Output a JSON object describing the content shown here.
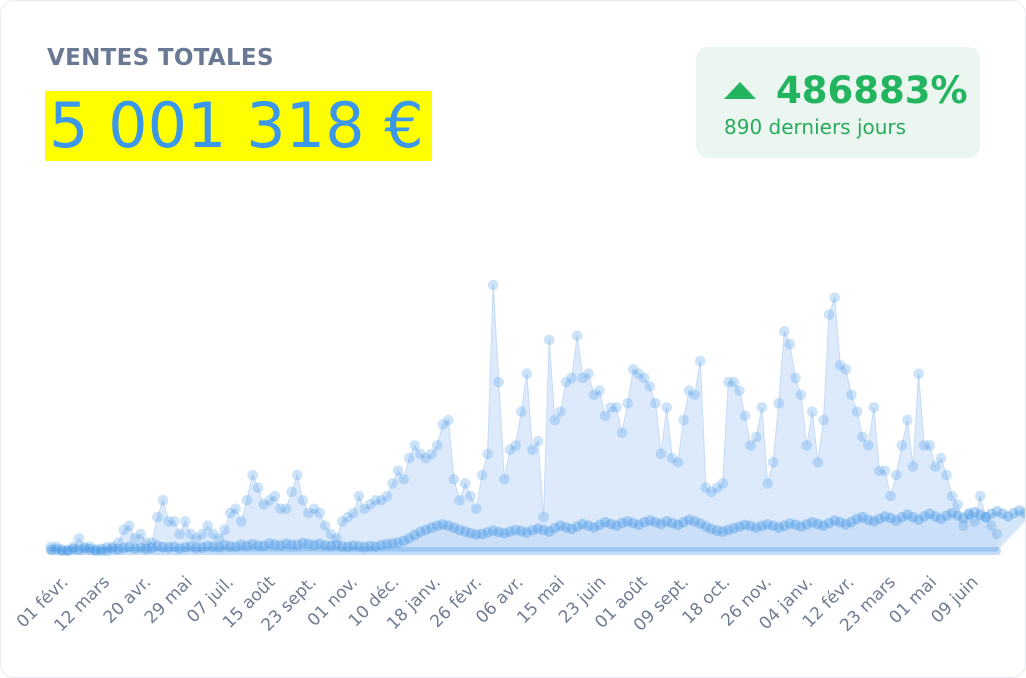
{
  "card": {
    "title": "VENTES TOTALES",
    "total_value": "5 001 318 €",
    "change_percent": "486883%",
    "change_period": "890 derniers jours",
    "change_direction": "up",
    "change_icon": "triangle-up-icon"
  },
  "colors": {
    "title": "#6a7894",
    "total_value": "#3a97ea",
    "total_highlight": "#ffff00",
    "badge_background": "#eaf6ef",
    "badge_text": "#23b45f",
    "series_fill": "#d6e6fb",
    "series_point": "#4d9ae6"
  },
  "chart_data": {
    "type": "scatter",
    "x_tick_labels": [
      "01 févr.",
      "12 mars",
      "20 avr.",
      "29 mai",
      "07 juil.",
      "15 août",
      "23 sept.",
      "01 nov.",
      "10 déc.",
      "18 janv.",
      "26 févr.",
      "06 avr.",
      "15 mai",
      "23 juin",
      "01 août",
      "09 sept.",
      "18 oct.",
      "26 nov.",
      "04 janv.",
      "12 févr.",
      "23 mars",
      "01 mai",
      "09 juin"
    ],
    "xlabel": "",
    "ylabel": "",
    "grid": false,
    "legend": "none",
    "y_axis_labels": "hidden",
    "series": [
      {
        "role": "upper",
        "values": [
          1,
          1,
          0,
          0,
          1,
          3,
          1,
          1,
          0,
          0,
          0,
          1,
          2,
          5,
          6,
          3,
          4,
          2,
          2,
          8,
          12,
          7,
          7,
          4,
          7,
          4,
          3,
          4,
          6,
          4,
          3,
          5,
          9,
          10,
          7,
          12,
          18,
          15,
          11,
          12,
          13,
          10,
          10,
          14,
          18,
          12,
          9,
          10,
          9,
          6,
          4,
          3,
          7,
          8,
          9,
          13,
          10,
          11,
          12,
          12,
          13,
          16,
          19,
          17,
          22,
          25,
          23,
          22,
          23,
          25,
          30,
          31,
          17,
          12,
          16,
          13,
          10,
          18,
          23,
          63,
          40,
          17,
          24,
          25,
          33,
          42,
          24,
          26,
          8,
          50,
          31,
          33,
          40,
          41,
          51,
          41,
          42,
          37,
          38,
          32,
          34,
          34,
          28,
          35,
          43,
          42,
          41,
          39,
          35,
          23,
          34,
          22,
          21,
          31,
          38,
          37,
          45,
          15,
          14,
          15,
          16,
          40,
          40,
          38,
          32,
          25,
          27,
          34,
          16,
          21,
          35,
          52,
          49,
          41,
          37,
          25,
          33,
          21,
          31,
          56,
          60,
          44,
          43,
          37,
          33,
          27,
          25,
          34,
          19,
          19,
          13,
          18,
          25,
          31,
          20,
          42,
          25,
          25,
          20,
          22,
          18,
          13,
          11,
          6,
          9,
          7,
          13,
          8,
          6,
          4
        ]
      },
      {
        "role": "lower",
        "values": [
          0.3,
          0.4,
          0.3,
          0.2,
          0.5,
          0.3,
          0.6,
          0.4,
          0.3,
          0.5,
          0.8,
          0.6,
          0.4,
          0.7,
          1.0,
          0.6,
          0.8,
          0.5,
          0.7,
          1.2,
          0.9,
          0.8,
          1.0,
          0.6,
          0.9,
          1.1,
          0.7,
          0.8,
          1.2,
          1.0,
          0.9,
          1.4,
          1.1,
          1.0,
          1.5,
          1.2,
          1.6,
          1.3,
          1.2,
          1.8,
          1.5,
          1.3,
          1.7,
          1.5,
          1.4,
          1.9,
          1.6,
          1.4,
          1.7,
          1.3,
          1.2,
          1.5,
          1.1,
          1.0,
          1.3,
          1.1,
          0.9,
          1.2,
          1.0,
          1.4,
          1.6,
          1.8,
          2.0,
          2.4,
          3.0,
          3.8,
          4.5,
          5.0,
          5.5,
          6.0,
          6.3,
          6.0,
          5.5,
          5.0,
          4.6,
          4.2,
          3.9,
          4.0,
          4.4,
          4.8,
          4.5,
          4.2,
          4.6,
          5.0,
          4.7,
          4.4,
          4.9,
          5.3,
          5.0,
          4.6,
          5.4,
          6.0,
          5.6,
          5.2,
          5.8,
          6.4,
          6.0,
          5.6,
          6.2,
          6.8,
          6.4,
          6.0,
          6.6,
          7.0,
          6.6,
          6.2,
          6.8,
          7.2,
          6.8,
          6.4,
          7.0,
          6.6,
          6.2,
          6.8,
          7.4,
          7.0,
          6.5,
          5.8,
          5.2,
          4.8,
          4.6,
          5.0,
          5.4,
          5.8,
          6.2,
          5.9,
          5.5,
          5.9,
          6.3,
          6.0,
          5.6,
          6.0,
          6.5,
          6.2,
          5.8,
          6.3,
          6.8,
          6.4,
          6.0,
          6.6,
          7.2,
          6.8,
          6.3,
          6.9,
          7.6,
          8.0,
          7.4,
          7.0,
          7.6,
          8.2,
          7.8,
          7.2,
          8.0,
          8.6,
          8.0,
          7.4,
          8.2,
          8.8,
          8.2,
          7.6,
          8.4,
          9.0,
          8.4,
          7.8,
          8.6,
          9.2,
          8.6,
          8.0,
          8.8,
          9.4,
          8.8,
          8.2,
          9.0,
          9.6,
          9.0,
          8.4
        ]
      }
    ]
  }
}
